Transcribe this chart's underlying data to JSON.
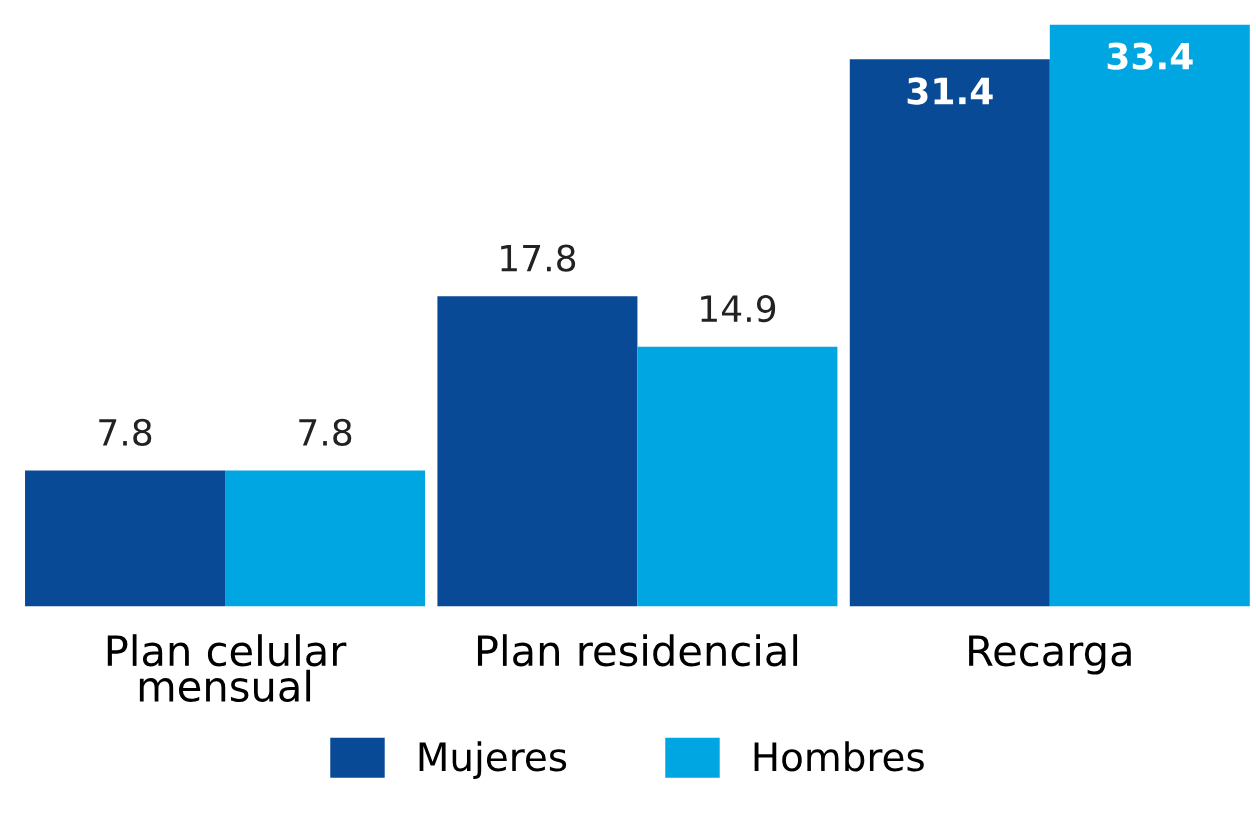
{
  "chart_data": {
    "type": "bar",
    "categories": [
      "Plan celular\nmensual",
      "Plan residencial",
      "Recarga"
    ],
    "series": [
      {
        "name": "Mujeres",
        "color": "#094a97",
        "values": [
          7.8,
          17.8,
          31.4
        ]
      },
      {
        "name": "Hombres",
        "color": "#00a6e2",
        "values": [
          7.8,
          14.9,
          33.4
        ]
      }
    ],
    "data_labels": true,
    "legend": "bottom",
    "grid": false
  }
}
